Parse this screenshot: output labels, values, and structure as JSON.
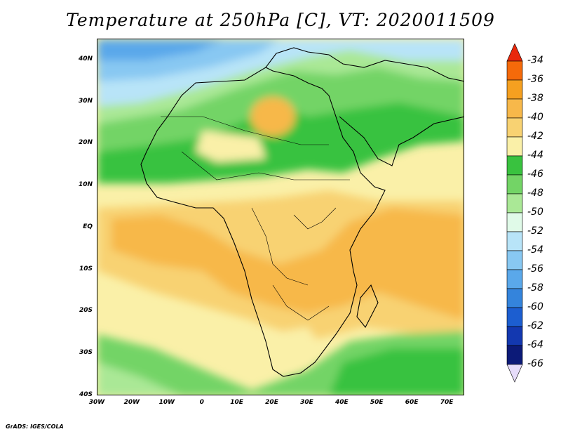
{
  "title": "Temperature at 250hPa [C], VT: 2020011509",
  "credit": "GrADS: IGES/COLA",
  "map": {
    "lat_labels": [
      "40N",
      "30N",
      "20N",
      "10N",
      "EQ",
      "10S",
      "20S",
      "30S",
      "40S"
    ],
    "lon_labels": [
      "30W",
      "20W",
      "10W",
      "0",
      "10E",
      "20E",
      "30E",
      "40E",
      "50E",
      "60E",
      "70E"
    ],
    "lat_range": [
      -40,
      45
    ],
    "lon_range": [
      -30,
      75
    ]
  },
  "colorbar": {
    "labels": [
      "-34",
      "-36",
      "-38",
      "-40",
      "-42",
      "-44",
      "-46",
      "-48",
      "-50",
      "-52",
      "-54",
      "-56",
      "-58",
      "-60",
      "-62",
      "-64",
      "-66"
    ],
    "colors": [
      "#e8280c",
      "#f56a0a",
      "#f5a020",
      "#f7b84a",
      "#f8d272",
      "#faf0a8",
      "#39c23f",
      "#73d466",
      "#aae896",
      "#e0fae8",
      "#b8e4f8",
      "#88c8f2",
      "#5aa8ea",
      "#3484dc",
      "#1c5ed0",
      "#1338b0",
      "#0c1a78",
      "#e6dcfa"
    ]
  }
}
